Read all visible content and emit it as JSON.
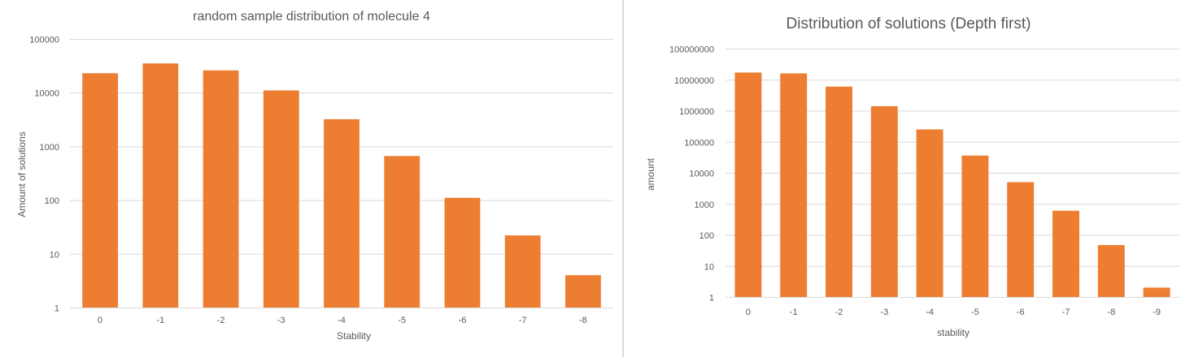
{
  "chart_data": [
    {
      "type": "bar",
      "title": "random sample distribution of molecule 4",
      "xlabel": "Stability",
      "ylabel": "Amount of solutions",
      "yscale": "log",
      "ylim": [
        1,
        100000
      ],
      "yticks": [
        "1",
        "10",
        "100",
        "1000",
        "10000",
        "100000"
      ],
      "categories": [
        "0",
        "-1",
        "-2",
        "-3",
        "-4",
        "-5",
        "-6",
        "-7",
        "-8"
      ],
      "values": [
        23000,
        35000,
        26000,
        11000,
        3200,
        660,
        110,
        22,
        4
      ],
      "color": "#ed7d31",
      "grid": true,
      "legend": false
    },
    {
      "type": "bar",
      "title": "Distribution of solutions (Depth first)",
      "xlabel": "stability",
      "ylabel": "amount",
      "yscale": "log",
      "ylim": [
        1,
        100000000
      ],
      "yticks": [
        "1",
        "10",
        "100",
        "1000",
        "10000",
        "100000",
        "1000000",
        "10000000",
        "100000000"
      ],
      "categories": [
        "0",
        "-1",
        "-2",
        "-3",
        "-4",
        "-5",
        "-6",
        "-7",
        "-8",
        "-9"
      ],
      "values": [
        17000000,
        16000000,
        6000000,
        1400000,
        250000,
        36000,
        5000,
        600,
        47,
        2
      ],
      "color": "#ed7d31",
      "grid": true,
      "legend": false
    }
  ]
}
